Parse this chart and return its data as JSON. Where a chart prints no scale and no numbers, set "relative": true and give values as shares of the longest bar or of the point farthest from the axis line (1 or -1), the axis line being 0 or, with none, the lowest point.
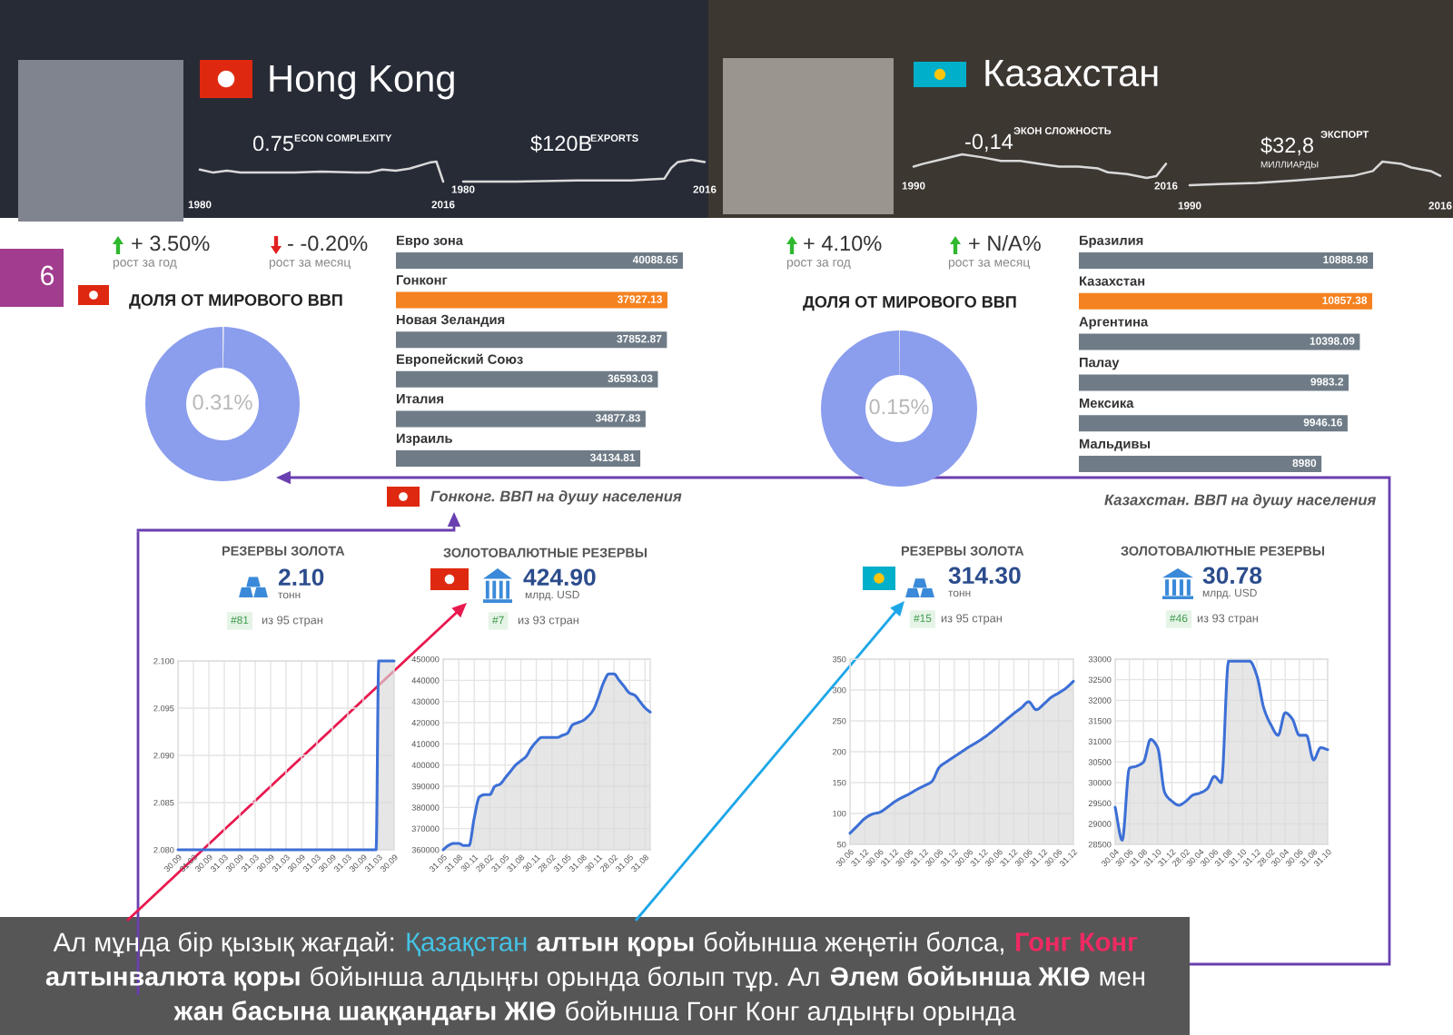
{
  "chart_data": [
    {
      "type": "other",
      "title": "Hong Kong"
    },
    {
      "type": "line",
      "relative": true,
      "title": "ECON COMPLEXITY",
      "annotations": [
        "0.75"
      ],
      "x": [
        1980,
        1982,
        1984,
        1986,
        1990,
        1994,
        1998,
        2003,
        2005,
        2007,
        2009,
        2011,
        2014,
        2015,
        2016
      ],
      "values": [
        0.6,
        0.45,
        0.55,
        0.45,
        0.45,
        0.45,
        0.5,
        0.45,
        0.45,
        0.6,
        0.55,
        0.65,
        0.95,
        1,
        0
      ],
      "color": "#d9d9d9",
      "xlim": [
        1980,
        2016
      ],
      "xticks": [
        1980,
        2016
      ]
    },
    {
      "type": "line",
      "relative": true,
      "title": "EXPORTS",
      "annotations": [
        "$120B"
      ],
      "x": [
        1980,
        1988,
        1997,
        2005,
        2010,
        2011,
        2012,
        2014,
        2016
      ],
      "values": [
        0,
        0,
        0.05,
        0.05,
        0.14,
        0.62,
        0.9,
        1,
        0.9
      ],
      "color": "#d9d9d9",
      "xlim": [
        1980,
        2016
      ],
      "xticks": [
        1980,
        2016
      ]
    },
    {
      "type": "other",
      "title": "Казахстан"
    },
    {
      "type": "line",
      "relative": true,
      "title": "ЭКОН СЛОЖНОСТЬ",
      "annotations": [
        "-0,14"
      ],
      "x": [
        1990,
        1991,
        1993,
        1995,
        1997,
        1999,
        2001,
        2003,
        2005,
        2007,
        2009,
        2010,
        2012,
        2014,
        2015,
        2016
      ],
      "values": [
        0.48,
        0.6,
        0.8,
        1,
        0.88,
        0.72,
        0.72,
        0.6,
        0.48,
        0.48,
        0.4,
        0.24,
        0.16,
        0,
        0.08,
        0.6
      ],
      "color": "#d9d9d9",
      "xlim": [
        1990,
        2016
      ],
      "xticks": [
        1990,
        2016
      ]
    },
    {
      "type": "line",
      "relative": true,
      "title": "ЭКСПОРТ",
      "annotations": [
        "$32,8",
        "МИЛЛИАРДЫ"
      ],
      "x": [
        1990,
        1993,
        1997,
        2001,
        2004,
        2007,
        2009,
        2010,
        2012,
        2013,
        2015,
        2016
      ],
      "values": [
        0,
        0.05,
        0.1,
        0.2,
        0.3,
        0.4,
        0.6,
        1,
        0.9,
        0.75,
        0.6,
        0.4
      ],
      "color": "#d9d9d9",
      "xlim": [
        1990,
        2016
      ],
      "xticks": [
        1990,
        2016
      ]
    },
    {
      "type": "other",
      "annotations": [
        "6",
        "+ 3.50%",
        "рост за год",
        "- -0.20%",
        "рост за месяц"
      ]
    },
    {
      "type": "donut",
      "title": "ДОЛЯ ОТ МИРОВОГО ВВП",
      "categories": [
        null,
        null
      ],
      "values": [
        0.31,
        99.69
      ],
      "colors": [
        "#e4e6ee",
        "#8b9ded"
      ],
      "annotations": [
        "0.31%"
      ]
    },
    {
      "type": "bar",
      "orientation": "horizontal",
      "categories": [
        "Евро зона",
        "Гонконг",
        "Новая Зеландия",
        "Европейский Союз",
        "Италия",
        "Израиль"
      ],
      "values": [
        40088.65,
        37927.13,
        37852.87,
        36593.03,
        34877.83,
        34134.81
      ],
      "colors": [
        "#6f7c87",
        "#f58220",
        "#6f7c87",
        "#6f7c87",
        "#6f7c87",
        "#6f7c87"
      ],
      "data_labels": true,
      "annotations": [
        "Гонконг. ВВП на душу населения"
      ]
    },
    {
      "type": "other",
      "annotations": [
        "+ 4.10%",
        "рост за год",
        "+ N/A%",
        "рост за месяц"
      ]
    },
    {
      "type": "donut",
      "title": "ДОЛЯ ОТ МИРОВОГО ВВП",
      "categories": [
        null,
        null
      ],
      "values": [
        0.15,
        99.85
      ],
      "colors": [
        "#e4e6ee",
        "#8b9ded"
      ],
      "annotations": [
        "0.15%"
      ]
    },
    {
      "type": "bar",
      "orientation": "horizontal",
      "categories": [
        "Бразилия",
        "Казахстан",
        "Аргентина",
        "Палау",
        "Мексика",
        "Мальдивы"
      ],
      "values": [
        10888.98,
        10857.38,
        10398.09,
        9983.2,
        9946.16,
        8980
      ],
      "colors": [
        "#6f7c87",
        "#f58220",
        "#6f7c87",
        "#6f7c87",
        "#6f7c87",
        "#6f7c87"
      ],
      "data_labels": true,
      "annotations": [
        "Казахстан. ВВП на душу населения"
      ]
    },
    {
      "type": "area",
      "title": "РЕЗЕРВЫ ЗОЛОТА",
      "annotations": [
        "2.10",
        "тонн",
        "#81",
        "из 95 стран"
      ],
      "categories": [
        "30.09",
        null,
        null,
        null,
        null,
        null,
        "31.03",
        null,
        null,
        null,
        null,
        null,
        "30.09",
        null,
        null,
        null,
        null,
        null,
        "31.03",
        null,
        null,
        null,
        null,
        null,
        "30.09",
        null,
        null,
        null,
        null,
        null,
        "31.03",
        null,
        null,
        null,
        null,
        null,
        "30.09",
        null,
        null,
        null,
        null,
        null,
        "31.03",
        null,
        null,
        null,
        null,
        null,
        "30.09",
        null,
        null,
        null,
        null,
        null,
        "31.03",
        null,
        null,
        null,
        null,
        null,
        "30.09",
        null,
        null,
        null,
        null,
        null,
        "31.03",
        null,
        null,
        null,
        null,
        null,
        "30.09",
        null,
        null,
        null,
        null,
        null,
        "31.03",
        null,
        null,
        null,
        null,
        null,
        "30.09"
      ],
      "values": [
        2.08,
        2.08,
        2.08,
        2.08,
        2.08,
        2.08,
        2.08,
        2.08,
        2.08,
        2.08,
        2.08,
        2.08,
        2.08,
        2.08,
        2.08,
        2.08,
        2.08,
        2.08,
        2.08,
        2.08,
        2.08,
        2.08,
        2.08,
        2.08,
        2.08,
        2.08,
        2.08,
        2.08,
        2.08,
        2.08,
        2.08,
        2.08,
        2.08,
        2.08,
        2.08,
        2.08,
        2.08,
        2.08,
        2.08,
        2.08,
        2.08,
        2.08,
        2.08,
        2.08,
        2.08,
        2.08,
        2.08,
        2.08,
        2.08,
        2.08,
        2.08,
        2.08,
        2.08,
        2.08,
        2.08,
        2.08,
        2.08,
        2.08,
        2.08,
        2.08,
        2.08,
        2.08,
        2.08,
        2.08,
        2.08,
        2.08,
        2.08,
        2.08,
        2.08,
        2.08,
        2.08,
        2.08,
        2.08,
        2.08,
        2.08,
        2.08,
        2.08,
        2.08,
        2.1,
        2.1,
        2.1,
        2.1,
        2.1,
        2.1,
        2.1
      ],
      "color": "#3c6fd6",
      "ylim": [
        2.08,
        2.1
      ],
      "yticks": [
        {
          "value": 2.08,
          "label": "2.080"
        },
        2.085,
        {
          "value": 2.09,
          "label": "2.090"
        },
        2.095,
        {
          "value": 2.1,
          "label": "2.100"
        }
      ],
      "grid": true
    },
    {
      "type": "area",
      "title": "ЗОЛОТОВАЛЮТНЫЕ РЕЗЕРВЫ",
      "annotations": [
        "424.90",
        "млрд. USD",
        "#7",
        "из 93 стран"
      ],
      "categories": [
        "31.05",
        null,
        null,
        "31.08",
        null,
        null,
        "30.11",
        null,
        null,
        "28.02",
        null,
        null,
        "31.05",
        null,
        null,
        "31.08",
        null,
        null,
        "30.11",
        null,
        null,
        "28.02",
        null,
        null,
        "31.05",
        null,
        null,
        "31.08",
        null,
        null,
        "30.11",
        null,
        null,
        "28.02",
        null,
        null,
        "31.05",
        null,
        null,
        "31.08",
        null
      ],
      "values": [
        360000,
        362000,
        363000,
        363000,
        362000,
        362000,
        375000,
        385000,
        386000,
        386000,
        390000,
        391000,
        394000,
        397000,
        400000,
        402000,
        404000,
        408000,
        411000,
        413000,
        413000,
        413000,
        413000,
        414000,
        415000,
        419000,
        420000,
        421000,
        423000,
        426000,
        432000,
        439000,
        443000,
        443000,
        440000,
        437000,
        434000,
        433000,
        430000,
        427000,
        425000
      ],
      "color": "#3c6fd6",
      "ylim": [
        360000,
        450000
      ],
      "yticks": [
        360000,
        370000,
        380000,
        390000,
        400000,
        410000,
        420000,
        430000,
        440000,
        450000
      ],
      "grid": true
    },
    {
      "type": "area",
      "title": "РЕЗЕРВЫ ЗОЛОТА",
      "annotations": [
        "314.30",
        "тонн",
        "#15",
        "из 95 стран"
      ],
      "categories": [
        "30.06",
        null,
        "31.12",
        null,
        "30.06",
        null,
        "31.12",
        null,
        "30.06",
        null,
        "31.12",
        null,
        "30.06",
        null,
        "31.12",
        null,
        "30.06",
        null,
        "31.12",
        null,
        "30.06",
        null,
        "31.12",
        null,
        "30.06",
        null,
        "31.12",
        null,
        "30.06",
        null,
        "31.12"
      ],
      "values": [
        68,
        80,
        92,
        99,
        102,
        110,
        119,
        126,
        132,
        139,
        145,
        152,
        175,
        184,
        192,
        200,
        208,
        215,
        223,
        232,
        242,
        252,
        262,
        271,
        281,
        268,
        277,
        288,
        295,
        303,
        314
      ],
      "color": "#3c6fd6",
      "ylim": [
        50,
        350
      ],
      "yticks": [
        50,
        100,
        150,
        200,
        250,
        300,
        350
      ],
      "grid": true
    },
    {
      "type": "area",
      "title": "ЗОЛОТОВАЛЮТНЫЕ РЕЗЕРВЫ",
      "annotations": [
        "30.78",
        "млрд. USD",
        "#46",
        "из 93 стран"
      ],
      "categories": [
        "30.04",
        null,
        "30.06",
        null,
        "31.08",
        null,
        "31.10",
        null,
        "31.12",
        null,
        "28.02",
        null,
        "30.04",
        null,
        "30.06",
        null,
        "31.08",
        null,
        "31.10",
        null,
        "31.12",
        null,
        "28.02",
        null,
        "30.04",
        null,
        "30.06",
        null,
        "31.08",
        null,
        "31.10"
      ],
      "values": [
        29400,
        28600,
        30350,
        30400,
        30500,
        31050,
        30850,
        29750,
        29550,
        29450,
        29550,
        29700,
        29750,
        29850,
        30150,
        30000,
        32950,
        32950,
        32950,
        32950,
        32600,
        31800,
        31400,
        31150,
        31700,
        31550,
        31150,
        31150,
        30550,
        30850,
        30800
      ],
      "color": "#3c6fd6",
      "ylim": [
        28500,
        33000
      ],
      "yticks": [
        28500,
        29000,
        29500,
        30000,
        30500,
        31000,
        31500,
        32000,
        32500,
        33000
      ],
      "grid": true
    },
    {
      "type": "other",
      "annotations": [
        "Ал мұнда бір қызық жағдай:",
        "Қазақстан",
        "алтын қоры",
        "бойынша жеңетін болса,",
        "Гонг Конг",
        "алтынвалюта қоры",
        "бойынша алдыңғы орында болып тұр. Ал",
        "Әлем бойынша ЖІӨ",
        "мен",
        "жан басына шаққандағы ЖІӨ",
        "бойынша Гонг Конг алдыңғы орында"
      ]
    }
  ]
}
